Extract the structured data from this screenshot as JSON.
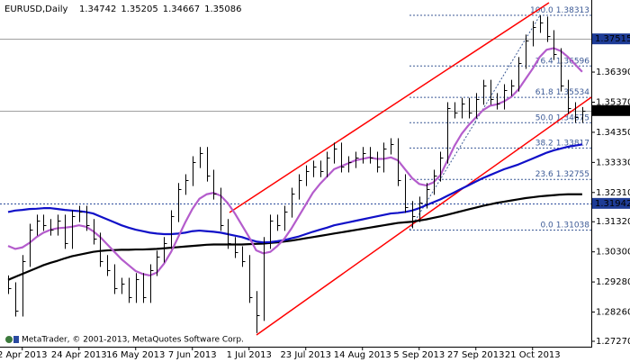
{
  "chart_data": {
    "type": "ohlc",
    "symbol": "EURUSD,Daily",
    "ohlc": [
      1.34742,
      1.35205,
      1.34667,
      1.35086
    ],
    "categories": [
      null,
      null,
      "2 Apr 2013",
      null,
      null,
      null,
      null,
      null,
      null,
      null,
      "24 Apr 2013",
      null,
      null,
      null,
      null,
      null,
      null,
      null,
      "16 May 2013",
      null,
      null,
      null,
      null,
      null,
      null,
      null,
      "7 Jun 2013",
      null,
      null,
      null,
      null,
      null,
      null,
      null,
      "1 Jul 2013",
      null,
      null,
      null,
      null,
      null,
      null,
      null,
      "23 Jul 2013",
      null,
      null,
      null,
      null,
      null,
      null,
      null,
      "14 Aug 2013",
      null,
      null,
      null,
      null,
      null,
      null,
      null,
      "5 Sep 2013",
      null,
      null,
      null,
      null,
      null,
      null,
      null,
      "27 Sep 2013",
      null,
      null,
      null,
      null,
      null,
      null,
      null,
      "21 Oct 2013",
      null,
      null,
      null,
      null,
      null,
      null,
      null
    ],
    "high": [
      1.295,
      1.2927,
      1.3019,
      1.3125,
      1.3156,
      1.3156,
      1.3141,
      1.3156,
      1.3156,
      1.3171,
      1.3186,
      1.3186,
      1.3141,
      1.3095,
      1.3019,
      1.2988,
      1.2942,
      1.2942,
      1.2958,
      1.2958,
      1.2988,
      1.3034,
      1.308,
      1.3171,
      1.3263,
      1.3293,
      1.3354,
      1.3385,
      1.3385,
      1.3308,
      1.3247,
      1.3141,
      1.308,
      1.3049,
      1.3019,
      1.2897,
      1.308,
      1.3156,
      1.3156,
      1.3186,
      1.3247,
      1.3293,
      1.3323,
      1.3339,
      1.3339,
      1.3369,
      1.34,
      1.34,
      1.3354,
      1.3369,
      1.3385,
      1.3385,
      1.3369,
      1.34,
      1.3415,
      1.3415,
      1.3293,
      1.3202,
      1.3217,
      1.3263,
      1.3308,
      1.3369,
      1.3537,
      1.3537,
      1.3552,
      1.3552,
      1.3568,
      1.3613,
      1.3613,
      1.3568,
      1.3598,
      1.3613,
      1.369,
      1.3766,
      1.3812,
      1.3831,
      1.3827,
      1.3781,
      1.372,
      1.3613,
      1.3537,
      1.35205
    ],
    "low": [
      1.2887,
      1.2811,
      1.2811,
      1.2979,
      1.3085,
      1.3101,
      1.3085,
      1.3085,
      1.304,
      1.304,
      1.3131,
      1.3101,
      1.3055,
      1.2979,
      1.2948,
      1.2887,
      1.2887,
      1.2857,
      1.2857,
      1.2857,
      1.2857,
      1.2948,
      1.2994,
      1.304,
      1.3131,
      1.3223,
      1.3253,
      1.3314,
      1.3268,
      1.3207,
      1.3101,
      1.304,
      1.3009,
      1.2979,
      1.2857,
      1.2755,
      1.2796,
      1.304,
      1.3101,
      1.3101,
      1.3146,
      1.3207,
      1.3253,
      1.3283,
      1.3283,
      1.3283,
      1.3329,
      1.3299,
      1.3299,
      1.3314,
      1.3329,
      1.3329,
      1.3299,
      1.3299,
      1.336,
      1.3253,
      1.3162,
      1.311,
      1.3131,
      1.3177,
      1.3223,
      1.3268,
      1.3329,
      1.3482,
      1.3482,
      1.3482,
      1.3482,
      1.3528,
      1.3528,
      1.3512,
      1.3512,
      1.3558,
      1.3573,
      1.365,
      1.3726,
      1.3772,
      1.3741,
      1.368,
      1.3573,
      1.3497,
      1.3467,
      1.34667
    ],
    "close": [
      1.2907,
      1.2831,
      1.2999,
      1.3105,
      1.3136,
      1.3121,
      1.3105,
      1.3136,
      1.306,
      1.3151,
      1.3166,
      1.3121,
      1.3075,
      1.2999,
      1.2968,
      1.2907,
      1.2922,
      1.2877,
      1.2938,
      1.2877,
      1.2968,
      1.3014,
      1.306,
      1.3151,
      1.3243,
      1.3273,
      1.3334,
      1.3365,
      1.3288,
      1.3227,
      1.3121,
      1.306,
      1.3029,
      1.2999,
      1.2877,
      1.2816,
      1.306,
      1.3136,
      1.3121,
      1.3166,
      1.3227,
      1.3273,
      1.3303,
      1.3319,
      1.3303,
      1.3349,
      1.338,
      1.3319,
      1.3334,
      1.3349,
      1.3365,
      1.3349,
      1.3319,
      1.338,
      1.3395,
      1.3273,
      1.3182,
      1.3151,
      1.3197,
      1.3243,
      1.3288,
      1.3349,
      1.3517,
      1.3502,
      1.3532,
      1.3502,
      1.3548,
      1.3593,
      1.3548,
      1.3532,
      1.3578,
      1.3593,
      1.367,
      1.3746,
      1.3792,
      1.3807,
      1.3761,
      1.37,
      1.3593,
      1.3517,
      1.3487,
      1.35086
    ],
    "bar_color": "#000000",
    "indicators": [
      {
        "color": "#000000",
        "values": [
          1.2935,
          1.2945,
          1.2955,
          1.2965,
          1.2975,
          1.2985,
          1.2993,
          1.3,
          1.3008,
          1.3015,
          1.302,
          1.3025,
          1.303,
          1.3033,
          1.3035,
          1.3036,
          1.3037,
          1.3037,
          1.3038,
          1.3038,
          1.3039,
          1.304,
          1.3042,
          1.3044,
          1.3046,
          1.3048,
          1.305,
          1.3052,
          1.3054,
          1.3055,
          1.3055,
          1.3055,
          1.3055,
          1.3055,
          1.3056,
          1.3057,
          1.3058,
          1.306,
          1.3062,
          1.3065,
          1.3068,
          1.3072,
          1.3076,
          1.308,
          1.3084,
          1.3088,
          1.3092,
          1.3096,
          1.31,
          1.3104,
          1.3108,
          1.3112,
          1.3116,
          1.312,
          1.3124,
          1.3128,
          1.313,
          1.3132,
          1.3136,
          1.314,
          1.3145,
          1.315,
          1.3156,
          1.3162,
          1.3168,
          1.3174,
          1.318,
          1.3186,
          1.3191,
          1.3196,
          1.32,
          1.3204,
          1.3208,
          1.3212,
          1.3215,
          1.3218,
          1.322,
          1.3222,
          1.3224,
          1.3225,
          1.3225,
          1.3225
        ]
      },
      {
        "color": "#1010c8",
        "values": [
          1.3165,
          1.317,
          1.3172,
          1.3175,
          1.3176,
          1.3178,
          1.3178,
          1.3175,
          1.3172,
          1.317,
          1.3168,
          1.3165,
          1.316,
          1.315,
          1.314,
          1.313,
          1.312,
          1.3112,
          1.3105,
          1.31,
          1.3095,
          1.3092,
          1.309,
          1.309,
          1.3092,
          1.3095,
          1.31,
          1.3102,
          1.31,
          1.3098,
          1.3095,
          1.309,
          1.3085,
          1.308,
          1.3072,
          1.3065,
          1.3062,
          1.3063,
          1.3066,
          1.307,
          1.3076,
          1.3082,
          1.309,
          1.3098,
          1.3105,
          1.3112,
          1.312,
          1.3125,
          1.313,
          1.3135,
          1.314,
          1.3145,
          1.315,
          1.3155,
          1.316,
          1.3162,
          1.3165,
          1.317,
          1.3178,
          1.3188,
          1.3198,
          1.3208,
          1.322,
          1.3232,
          1.3244,
          1.3256,
          1.3268,
          1.328,
          1.329,
          1.33,
          1.331,
          1.3318,
          1.3326,
          1.3336,
          1.3346,
          1.3356,
          1.3366,
          1.3374,
          1.338,
          1.3386,
          1.339,
          1.3394
        ]
      },
      {
        "color": "#b45ccc",
        "values": [
          1.305,
          1.304,
          1.3045,
          1.306,
          1.308,
          1.3095,
          1.3105,
          1.311,
          1.3112,
          1.3115,
          1.312,
          1.3115,
          1.31,
          1.308,
          1.3055,
          1.303,
          1.3005,
          1.2985,
          1.2965,
          1.2955,
          1.295,
          1.296,
          1.299,
          1.303,
          1.308,
          1.313,
          1.3175,
          1.321,
          1.3225,
          1.323,
          1.322,
          1.3195,
          1.316,
          1.312,
          1.308,
          1.3035,
          1.3025,
          1.303,
          1.305,
          1.3075,
          1.311,
          1.315,
          1.319,
          1.323,
          1.326,
          1.3285,
          1.331,
          1.332,
          1.333,
          1.334,
          1.3345,
          1.335,
          1.3345,
          1.3345,
          1.335,
          1.334,
          1.331,
          1.328,
          1.326,
          1.3255,
          1.3265,
          1.329,
          1.334,
          1.339,
          1.343,
          1.346,
          1.3485,
          1.351,
          1.3525,
          1.353,
          1.354,
          1.3555,
          1.358,
          1.3615,
          1.365,
          1.369,
          1.3715,
          1.372,
          1.371,
          1.369,
          1.3665,
          1.364
        ]
      }
    ],
    "ylim": [
      1.27087,
      1.38832
    ],
    "yticks": [
      {
        "value": 1.3639,
        "label": "1.36390"
      },
      {
        "value": 1.3537,
        "label": "1.35370"
      },
      {
        "value": 1.3435,
        "label": "1.34350"
      },
      {
        "value": 1.3333,
        "label": "1.33330"
      },
      {
        "value": 1.3231,
        "label": "1.32310"
      },
      {
        "value": 1.3132,
        "label": "1.31320"
      },
      {
        "value": 1.303,
        "label": "1.30300"
      },
      {
        "value": 1.2928,
        "label": "1.29280"
      },
      {
        "value": 1.2826,
        "label": "1.28260"
      },
      {
        "value": 1.2727,
        "label": "1.27270"
      }
    ],
    "price_lines": [
      {
        "value": 1.37515,
        "color": "#1e3c96"
      },
      {
        "value": 1.35086,
        "color": "#000000"
      },
      {
        "value": 1.31942,
        "color": "#1e3c96"
      }
    ],
    "fib": {
      "color": "#3c5a96",
      "levels": [
        {
          "level": "0.0",
          "price": 1.31038
        },
        {
          "level": "23.6",
          "price": 1.32755
        },
        {
          "level": "38.2",
          "price": 1.33817
        },
        {
          "level": "50.0",
          "price": 1.34675
        },
        {
          "level": "61.8",
          "price": 1.35534
        },
        {
          "level": "76.4",
          "price": 1.36596
        },
        {
          "level": "100.0",
          "price": 1.38313
        }
      ]
    },
    "channel_color": "#ff0000",
    "copyright": "MetaTrader, © 2001-2013, MetaQuotes Software Corp."
  }
}
